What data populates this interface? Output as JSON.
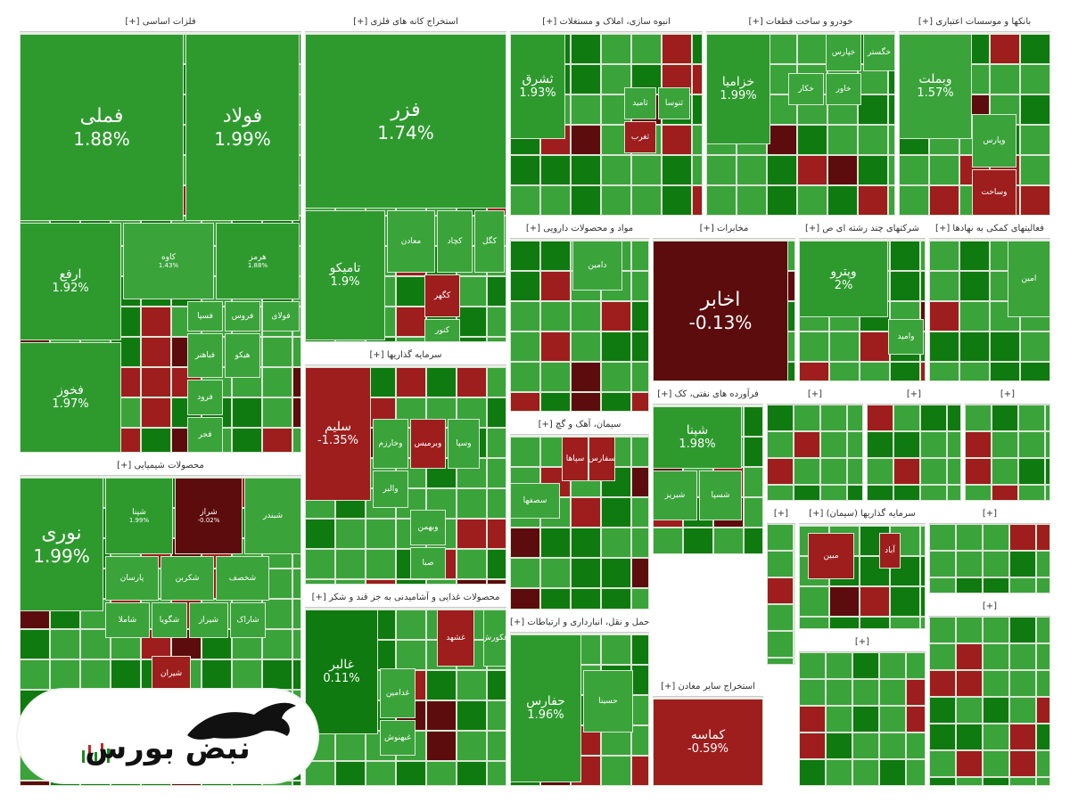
{
  "colors": {
    "up_strong": "#0f7a0f",
    "up": "#2e9a2e",
    "up_light": "#3aa33a",
    "down": "#9e1d1d",
    "down_dark": "#5c0c0c",
    "tile_border": "#d9e6d4",
    "header_bg": "#ffffff"
  },
  "chart_data": {
    "type": "treemap",
    "metric": "daily price change (%)",
    "sectors": [
      {
        "name": "[+] فلزات اساسی",
        "symbols": [
          {
            "name": "فملی",
            "pct": "1.88%",
            "value": 1.88
          },
          {
            "name": "فولاد",
            "pct": "1.99%",
            "value": 1.99
          },
          {
            "name": "ارفع",
            "pct": "1.92%",
            "value": 1.92
          },
          {
            "name": "کاوه",
            "pct": "1.43%",
            "value": 1.43
          },
          {
            "name": "هرمز",
            "pct": "1.88%",
            "value": 1.88
          },
          {
            "name": "فخوز",
            "pct": "1.97%",
            "value": 1.97
          },
          {
            "name": "فولای",
            "pct": "",
            "value": 1.5
          },
          {
            "name": "فروس",
            "pct": "",
            "value": 1.2
          },
          {
            "name": "فسپا",
            "pct": "",
            "value": 1.1
          },
          {
            "name": "فباهنر",
            "pct": "",
            "value": 1.0
          },
          {
            "name": "فرود",
            "pct": "",
            "value": 0.9
          },
          {
            "name": "فجر",
            "pct": "",
            "value": 0.8
          },
          {
            "name": "هیکو",
            "pct": "",
            "value": 0.7
          }
        ]
      },
      {
        "name": "[+] استخراج کانه های فلزی",
        "symbols": [
          {
            "name": "فزر",
            "pct": "1.74%",
            "value": 1.74
          },
          {
            "name": "تامیکو",
            "pct": "1.9%",
            "value": 1.9
          },
          {
            "name": "کگل",
            "pct": "",
            "value": 1.4
          },
          {
            "name": "کچاد",
            "pct": "",
            "value": 1.3
          },
          {
            "name": "کگهر",
            "pct": "",
            "value": -0.8
          },
          {
            "name": "معادن",
            "pct": "",
            "value": 1.1
          },
          {
            "name": "کنور",
            "pct": "",
            "value": 0.9
          }
        ]
      },
      {
        "name": "[+] انبوه سازی، املاک و مستغلات",
        "symbols": [
          {
            "name": "ثشرق",
            "pct": "1.93%",
            "value": 1.93
          },
          {
            "name": "ثامید",
            "pct": "",
            "value": 1.1
          },
          {
            "name": "ثنوسا",
            "pct": "",
            "value": 1.0
          },
          {
            "name": "ثغرب",
            "pct": "",
            "value": -0.9
          }
        ]
      },
      {
        "name": "[+] خودرو و ساخت قطعات",
        "symbols": [
          {
            "name": "خزامیا",
            "pct": "1.99%",
            "value": 1.99
          },
          {
            "name": "خپارس",
            "pct": "",
            "value": 1.4
          },
          {
            "name": "خگستر",
            "pct": "",
            "value": 1.3
          },
          {
            "name": "خاور",
            "pct": "",
            "value": 1.1
          },
          {
            "name": "خکار",
            "pct": "",
            "value": 1.0
          }
        ]
      },
      {
        "name": "[+] بانکها و موسسات اعتباری",
        "symbols": [
          {
            "name": "وبملت",
            "pct": "1.57%",
            "value": 1.57
          },
          {
            "name": "وپارس",
            "pct": "",
            "value": 1.2
          },
          {
            "name": "وساخت",
            "pct": "",
            "value": -0.7
          }
        ]
      },
      {
        "name": "[+] مواد و محصولات دارویی",
        "symbols": [
          {
            "name": "دامین",
            "pct": "",
            "value": 1.2
          }
        ]
      },
      {
        "name": "[+] مخابرات",
        "symbols": [
          {
            "name": "اخابر",
            "pct": "-0.13%",
            "value": -0.13
          }
        ]
      },
      {
        "name": "[+] شرکتهای چند رشته ای ص",
        "symbols": [
          {
            "name": "وپترو",
            "pct": "2%",
            "value": 2.0
          },
          {
            "name": "وامید",
            "pct": "",
            "value": 1.2
          }
        ]
      },
      {
        "name": "[+] فعالیتهای کمکی به نهادها",
        "symbols": [
          {
            "name": "امین",
            "pct": "",
            "value": 1.3
          }
        ]
      },
      {
        "name": "[+] محصولات شیمیایی",
        "symbols": [
          {
            "name": "نوری",
            "pct": "1.99%",
            "value": 1.99
          },
          {
            "name": "شپنا",
            "pct": "1.99%",
            "value": 1.99
          },
          {
            "name": "شراز",
            "pct": "-0.02%",
            "value": -0.02
          },
          {
            "name": "شبندر",
            "pct": "",
            "value": 1.0
          },
          {
            "name": "پارسان",
            "pct": "",
            "value": 1.1
          },
          {
            "name": "شکربن",
            "pct": "",
            "value": 1.0
          },
          {
            "name": "شخصف",
            "pct": "",
            "value": 0.9
          },
          {
            "name": "شاملا",
            "pct": "",
            "value": 0.9
          },
          {
            "name": "شگویا",
            "pct": "",
            "value": 0.8
          },
          {
            "name": "شیراز",
            "pct": "",
            "value": 0.7
          },
          {
            "name": "شاراک",
            "pct": "",
            "value": 0.8
          },
          {
            "name": "شیران",
            "pct": "",
            "value": -0.6
          }
        ]
      },
      {
        "name": "[+] سرمایه گذاریها",
        "symbols": [
          {
            "name": "سلیم",
            "pct": "-1.35%",
            "value": -1.35
          },
          {
            "name": "وبرمیس",
            "pct": "",
            "value": -0.6
          },
          {
            "name": "وخارزم",
            "pct": "",
            "value": 1.0
          },
          {
            "name": "وسپا",
            "pct": "",
            "value": 1.0
          },
          {
            "name": "وبهمن",
            "pct": "",
            "value": 0.9
          },
          {
            "name": "والبر",
            "pct": "",
            "value": 0.8
          },
          {
            "name": "صبا",
            "pct": "",
            "value": 0.8
          }
        ]
      },
      {
        "name": "[+] سیمان، آهک و گچ",
        "symbols": [
          {
            "name": "سپاها",
            "pct": "",
            "value": -0.8
          },
          {
            "name": "سفارس",
            "pct": "",
            "value": -0.6
          },
          {
            "name": "سصفها",
            "pct": "",
            "value": 1.1
          }
        ]
      },
      {
        "name": "[+] فرآورده های نفتی، کک",
        "symbols": [
          {
            "name": "شپنا",
            "pct": "1.98%",
            "value": 1.98
          },
          {
            "name": "شبریز",
            "pct": "",
            "value": 1.1
          },
          {
            "name": "شسپا",
            "pct": "",
            "value": 1.0
          }
        ]
      },
      {
        "name": "[+] محصولات غذایی و آشامیدنی به جز قند و شکر",
        "symbols": [
          {
            "name": "غالبر",
            "pct": "0.11%",
            "value": 0.11
          },
          {
            "name": "غشهد",
            "pct": "",
            "value": -0.7
          },
          {
            "name": "غکورش",
            "pct": "",
            "value": 1.1
          },
          {
            "name": "غدامین",
            "pct": "",
            "value": 0.9
          },
          {
            "name": "غبهنوش",
            "pct": "",
            "value": 0.8
          }
        ]
      },
      {
        "name": "[+] حمل و نقل، انبارداری و ارتباطات",
        "symbols": [
          {
            "name": "حفارس",
            "pct": "1.96%",
            "value": 1.96
          },
          {
            "name": "حسینا",
            "pct": "",
            "value": 1.1
          }
        ]
      },
      {
        "name": "[+] استخراج سایر معادن",
        "symbols": [
          {
            "name": "کماسه",
            "pct": "-0.59%",
            "value": -0.59
          }
        ]
      },
      {
        "name": "[+] سرمایه گذاریها (سیمان)",
        "symbols": [
          {
            "name": "آباد",
            "pct": "",
            "value": -0.7
          },
          {
            "name": "مبین",
            "pct": "",
            "value": -0.9
          }
        ]
      }
    ]
  },
  "logo": {
    "text": "نبض بورس"
  }
}
